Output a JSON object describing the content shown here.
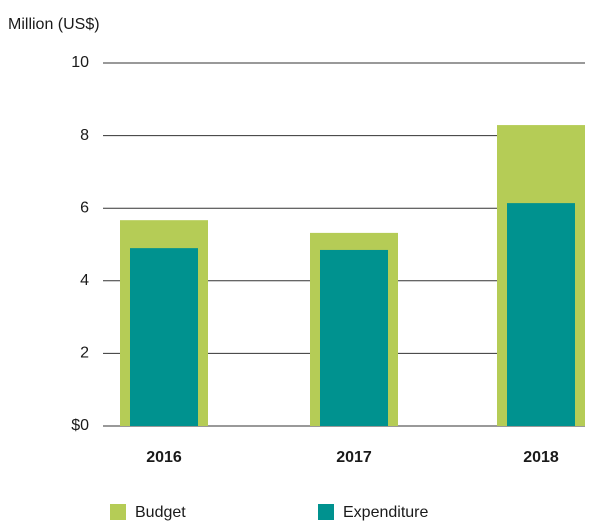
{
  "chart_data": {
    "type": "bar",
    "y_label": "Million (US$)",
    "categories": [
      "2016",
      "2017",
      "2018"
    ],
    "series": [
      {
        "name": "Budget",
        "color": "#b5cc56",
        "values": [
          5.67,
          5.32,
          8.29
        ]
      },
      {
        "name": "Expenditure",
        "color": "#00928f",
        "values": [
          4.9,
          4.85,
          6.14
        ]
      }
    ],
    "ylim": [
      0,
      10
    ],
    "yticks": [
      {
        "value": 0,
        "label": "$0"
      },
      2,
      4,
      6,
      8,
      10
    ],
    "grid": true,
    "legend": "bottom"
  }
}
